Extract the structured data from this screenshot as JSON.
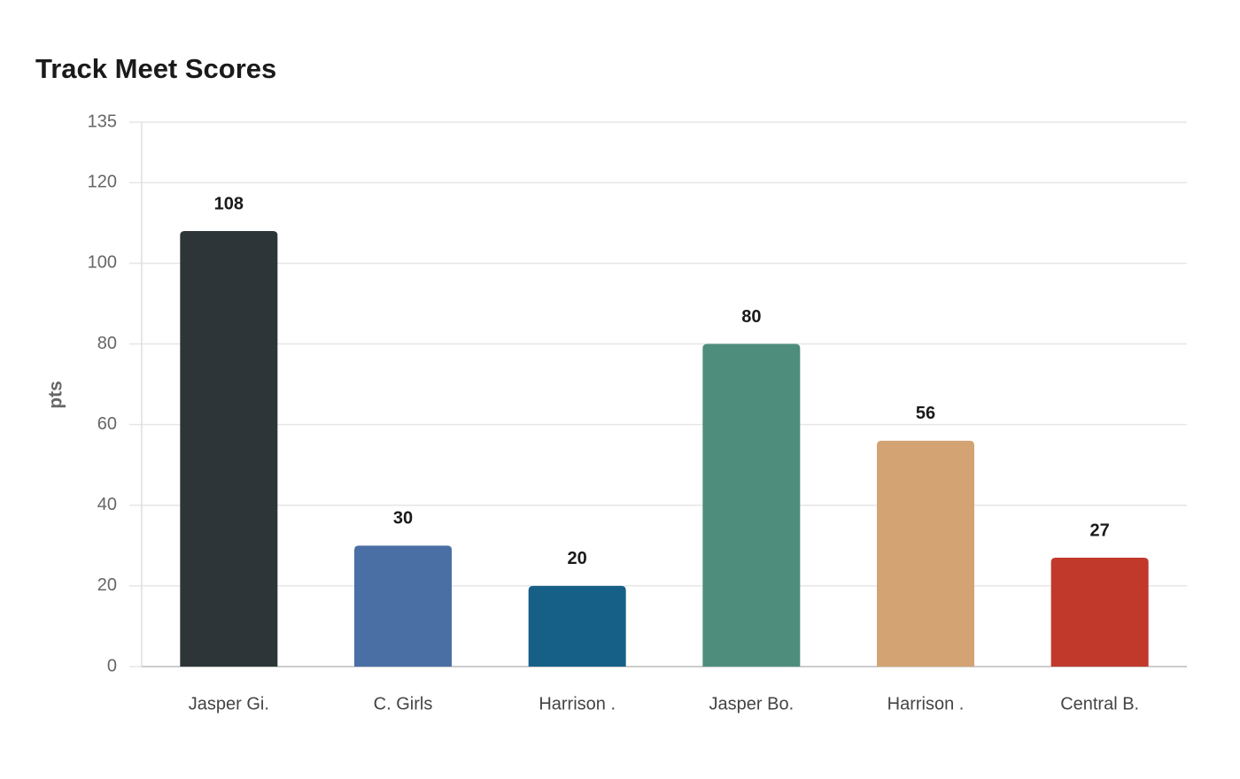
{
  "chart_data": {
    "type": "bar",
    "title": "Track Meet Scores",
    "y_label": "pts",
    "categories": [
      "Jasper Gi.",
      "C. Girls",
      "Harrison .",
      "Jasper Bo.",
      "Harrison .",
      "Central B."
    ],
    "values": [
      108,
      30,
      20,
      80,
      56,
      27
    ],
    "colors": [
      "#2d3538",
      "#4a6fa5",
      "#166088",
      "#4e8d7c",
      "#d4a373",
      "#c0392b"
    ],
    "ylim": [
      0,
      135
    ],
    "yticks": [
      0,
      20,
      40,
      60,
      80,
      100,
      120,
      135
    ],
    "grid": true
  }
}
